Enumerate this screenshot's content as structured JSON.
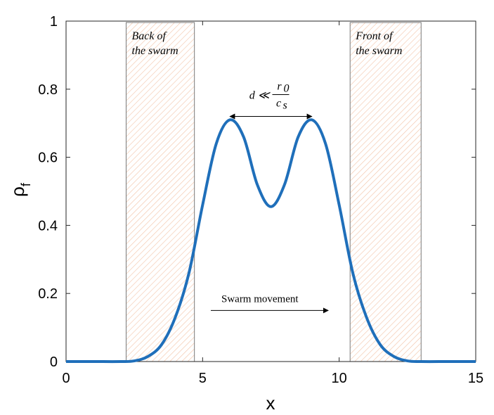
{
  "chart_data": {
    "type": "line",
    "xlabel": "x",
    "ylabel": "ρ",
    "ylabel_sub": "f",
    "xlim": [
      0,
      15
    ],
    "ylim": [
      0,
      1
    ],
    "xticks": [
      0,
      5,
      10,
      15
    ],
    "xtick_labels": [
      "0",
      "5",
      "10",
      "15"
    ],
    "yticks": [
      0,
      0.2,
      0.4,
      0.6,
      0.8,
      1
    ],
    "ytick_labels": [
      "0",
      "0.2",
      "0.4",
      "0.6",
      "0.8",
      "1"
    ],
    "grid": false,
    "series": [
      {
        "color": "#1f6fba",
        "x": [
          0,
          1,
          2,
          2.5,
          3,
          3.5,
          4,
          4.5,
          5,
          5.5,
          6,
          6.5,
          7,
          7.5,
          8,
          8.5,
          9,
          9.5,
          10,
          10.5,
          11,
          11.5,
          12,
          12.5,
          13,
          14,
          15
        ],
        "y": [
          0,
          0,
          0,
          0.002,
          0.015,
          0.05,
          0.13,
          0.26,
          0.46,
          0.64,
          0.71,
          0.66,
          0.52,
          0.455,
          0.52,
          0.66,
          0.71,
          0.64,
          0.46,
          0.26,
          0.13,
          0.05,
          0.015,
          0.002,
          0,
          0,
          0
        ]
      }
    ],
    "regions": [
      {
        "x0": 2.2,
        "x1": 4.7,
        "label_line1": "Back of",
        "label_line2": "the swarm"
      },
      {
        "x0": 10.4,
        "x1": 13.0,
        "label_line1": "Front of",
        "label_line2": "the swarm"
      }
    ],
    "separation_arrow": {
      "x0": 6.0,
      "x1": 9.0,
      "y": 0.72,
      "label_d": "d ≪",
      "label_num": "r",
      "label_num_sub": "0",
      "label_den": "c",
      "label_den_sub": "s"
    },
    "movement_arrow": {
      "x0": 5.3,
      "x1": 9.6,
      "y": 0.15,
      "label": "Swarm movement"
    }
  }
}
